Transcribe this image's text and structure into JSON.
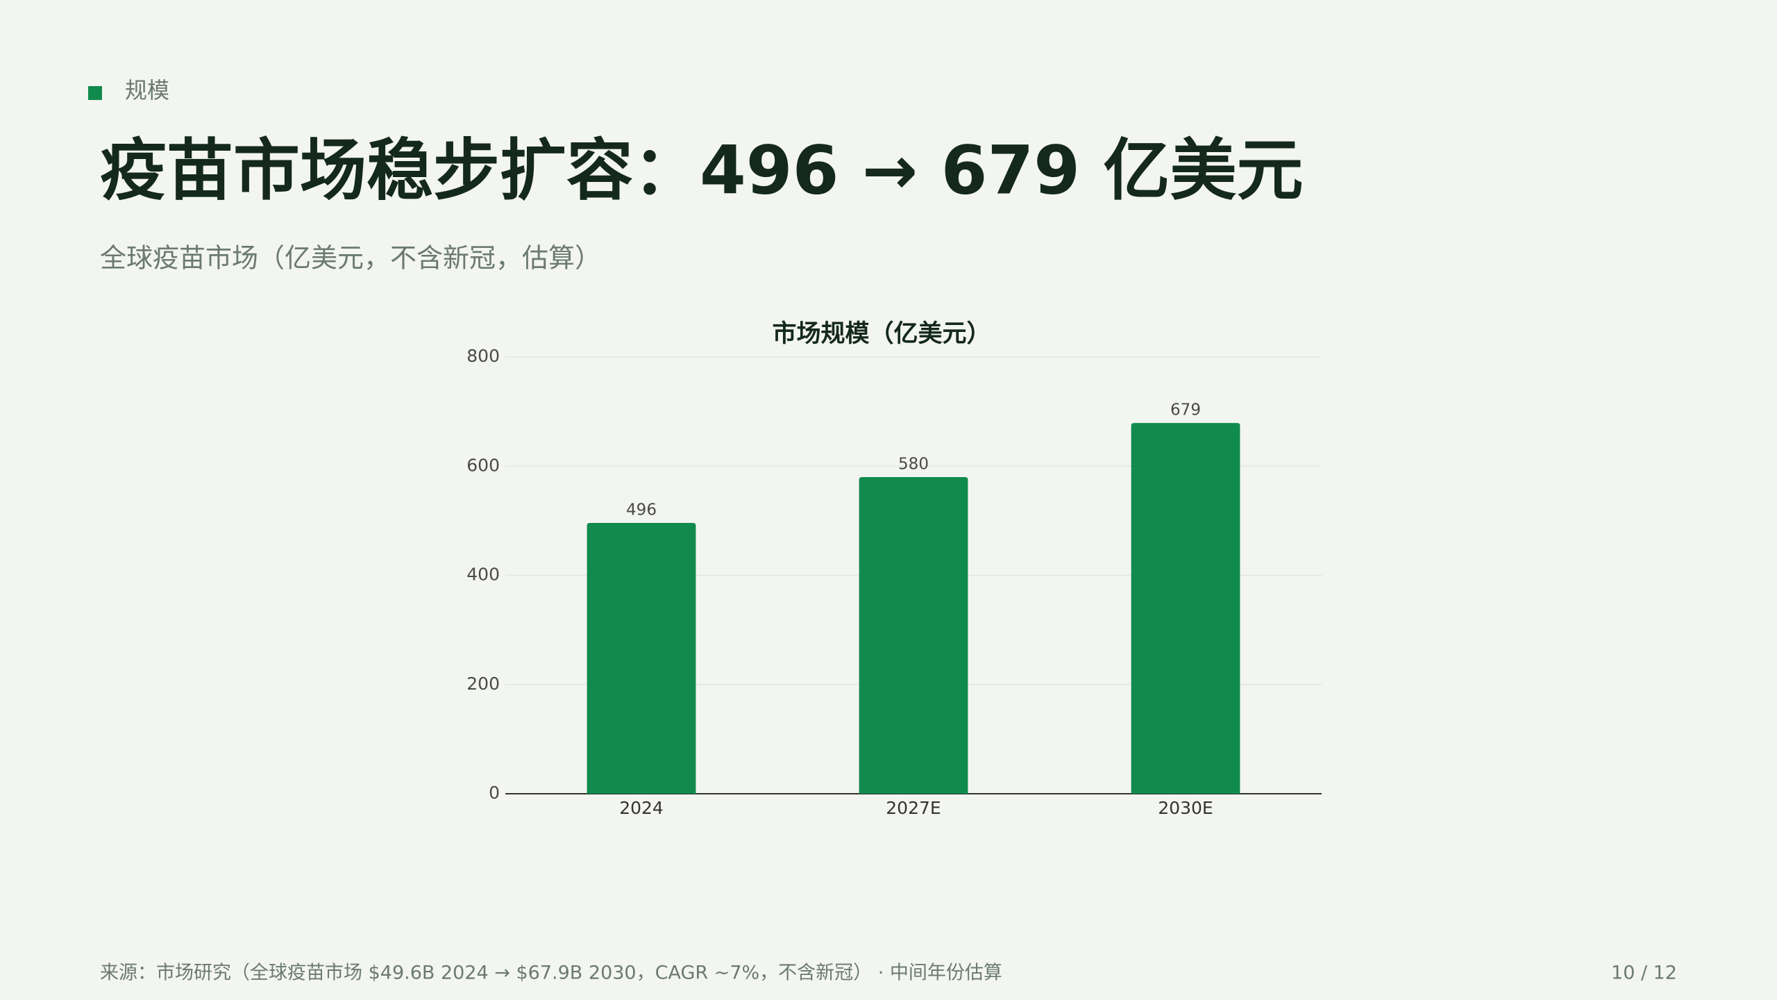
{
  "section_label": "规模",
  "title": "疫苗市场稳步扩容：496 → 679 亿美元",
  "subtitle": "全球疫苗市场（亿美元，不含新冠，估算）",
  "chart_data": {
    "type": "bar",
    "title": "市场规模（亿美元）",
    "categories": [
      "2024",
      "2027E",
      "2030E"
    ],
    "values": [
      496,
      580,
      679
    ],
    "color": "#118a4e",
    "ylim": [
      0,
      800
    ],
    "yticks": [
      0,
      200,
      400,
      600,
      800
    ],
    "grid": true
  },
  "footer": {
    "source": "来源：市场研究（全球疫苗市场 $49.6B 2024 → $67.9B 2030，CAGR ~7%，不含新冠） · 中间年份估算",
    "page": "10 / 12"
  }
}
